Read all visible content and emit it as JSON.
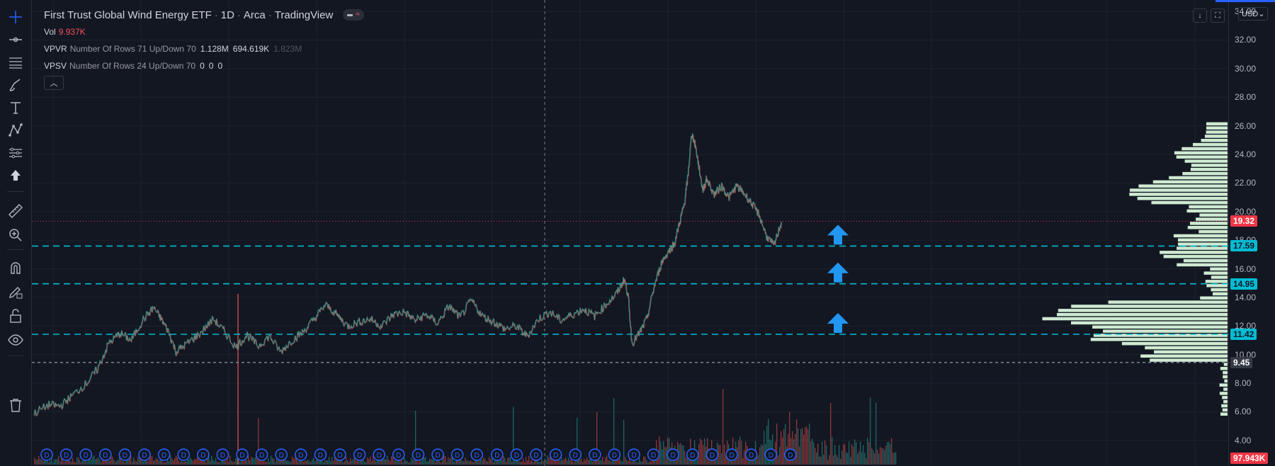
{
  "header": {
    "title": "First Trust Global Wind Energy ETF",
    "interval": "1D",
    "exchange": "Arca",
    "source": "TradingView"
  },
  "legend": {
    "vol": {
      "name": "Vol",
      "value": "9.937K"
    },
    "vpvr": {
      "name": "VPVR",
      "args": "Number Of Rows 71 Up/Down 70",
      "v1": "1.128M",
      "v2": "694.619K",
      "v3": "1.823M"
    },
    "vpsv": {
      "name": "VPSV",
      "args": "Number Of Rows 24 Up/Down 70",
      "v1": "0",
      "v2": "0",
      "v3": "0"
    }
  },
  "axis": {
    "currency": "USD",
    "ticks": [
      "34.00",
      "32.00",
      "30.00",
      "28.00",
      "26.00",
      "24.00",
      "22.00",
      "20.00",
      "18.00",
      "16.00",
      "14.00",
      "12.00",
      "10.00",
      "8.00",
      "6.00",
      "4.00"
    ]
  },
  "price_tags": [
    {
      "label": "19.32",
      "value": 19.32,
      "bg": "#f23645",
      "fg": "#ffffff"
    },
    {
      "label": "17.59",
      "value": 17.59,
      "bg": "#00bcd4",
      "fg": "#131722"
    },
    {
      "label": "14.95",
      "value": 14.95,
      "bg": "#00bcd4",
      "fg": "#131722"
    },
    {
      "label": "11.42",
      "value": 11.42,
      "bg": "#00bcd4",
      "fg": "#131722"
    },
    {
      "label": "9.45",
      "value": 9.45,
      "bg": "#363a45",
      "fg": "#ffffff"
    },
    {
      "label": "97.943K",
      "value": 0,
      "bg": "#f23645",
      "fg": "#ffffff"
    }
  ],
  "chart_data": {
    "type": "line",
    "price_points": [
      [
        0,
        5.9
      ],
      [
        0.02,
        6.5
      ],
      [
        0.035,
        6.4
      ],
      [
        0.05,
        7.1
      ],
      [
        0.07,
        8.0
      ],
      [
        0.085,
        9.0
      ],
      [
        0.1,
        10.8
      ],
      [
        0.115,
        11.5
      ],
      [
        0.13,
        11.0
      ],
      [
        0.145,
        12.4
      ],
      [
        0.16,
        13.3
      ],
      [
        0.17,
        12.5
      ],
      [
        0.18,
        11.6
      ],
      [
        0.19,
        10.2
      ],
      [
        0.205,
        10.8
      ],
      [
        0.22,
        11.4
      ],
      [
        0.24,
        12.5
      ],
      [
        0.255,
        11.6
      ],
      [
        0.27,
        10.5
      ],
      [
        0.285,
        11.4
      ],
      [
        0.3,
        10.6
      ],
      [
        0.315,
        11.3
      ],
      [
        0.33,
        10.2
      ],
      [
        0.345,
        11.0
      ],
      [
        0.36,
        11.6
      ],
      [
        0.375,
        12.5
      ],
      [
        0.39,
        13.5
      ],
      [
        0.405,
        12.8
      ],
      [
        0.42,
        12.0
      ],
      [
        0.435,
        12.3
      ],
      [
        0.45,
        12.5
      ],
      [
        0.465,
        12.0
      ],
      [
        0.48,
        12.8
      ],
      [
        0.495,
        13.0
      ],
      [
        0.51,
        12.4
      ],
      [
        0.525,
        12.8
      ],
      [
        0.54,
        12.2
      ],
      [
        0.555,
        13.4
      ],
      [
        0.57,
        12.6
      ],
      [
        0.585,
        13.8
      ],
      [
        0.6,
        12.7
      ],
      [
        0.615,
        12.3
      ],
      [
        0.63,
        11.8
      ],
      [
        0.645,
        12.0
      ],
      [
        0.66,
        11.3
      ],
      [
        0.675,
        12.5
      ],
      [
        0.69,
        13.0
      ],
      [
        0.705,
        12.4
      ],
      [
        0.72,
        12.8
      ],
      [
        0.735,
        13.2
      ],
      [
        0.75,
        12.7
      ],
      [
        0.765,
        13.5
      ],
      [
        0.78,
        14.3
      ],
      [
        0.79,
        15.3
      ],
      [
        0.795,
        14.1
      ],
      [
        0.8,
        10.8
      ],
      [
        0.81,
        11.5
      ],
      [
        0.82,
        12.5
      ],
      [
        0.83,
        14.8
      ],
      [
        0.84,
        16.5
      ],
      [
        0.85,
        17.3
      ],
      [
        0.857,
        17.8
      ],
      [
        0.865,
        19.5
      ],
      [
        0.87,
        20.5
      ],
      [
        0.875,
        22.5
      ],
      [
        0.88,
        25.5
      ],
      [
        0.885,
        24.6
      ],
      [
        0.89,
        23.0
      ],
      [
        0.895,
        21.5
      ],
      [
        0.9,
        22.3
      ],
      [
        0.91,
        21.2
      ],
      [
        0.92,
        21.8
      ],
      [
        0.93,
        21.0
      ],
      [
        0.94,
        21.8
      ],
      [
        0.95,
        21.3
      ],
      [
        0.96,
        20.6
      ],
      [
        0.97,
        19.8
      ],
      [
        0.98,
        18.3
      ],
      [
        0.99,
        17.6
      ],
      [
        1.0,
        19.3
      ]
    ],
    "ylim": [
      3.0,
      34.5
    ]
  },
  "horizontal_lines": [
    {
      "value": 19.32,
      "color": "#f23645",
      "style": "dotted"
    },
    {
      "value": 17.59,
      "color": "#00bcd4",
      "style": "dashed"
    },
    {
      "value": 14.95,
      "color": "#00bcd4",
      "style": "dashed"
    },
    {
      "value": 11.42,
      "color": "#00bcd4",
      "style": "dashed"
    },
    {
      "value": 9.45,
      "color": "#787b86",
      "style": "dashed"
    }
  ],
  "arrows_at": [
    17.59,
    14.95,
    11.42
  ],
  "dividend_markers_count": 39,
  "dividend_marker_label": "D",
  "colors": {
    "up": "#26a69a",
    "down": "#ef5350",
    "profile": "#d8f5dc",
    "arrow": "#2196f3",
    "bg": "#131722"
  },
  "toolbar": [
    "crosshair-icon",
    "trend-line-icon",
    "fib-icon",
    "brush-icon",
    "text-icon",
    "pattern-icon",
    "forecast-icon",
    "arrow-up-icon",
    "ruler-icon",
    "zoom-in-icon",
    "magnet-icon",
    "lock-draw-icon",
    "unlock-icon",
    "eye-icon",
    "trash-icon"
  ]
}
